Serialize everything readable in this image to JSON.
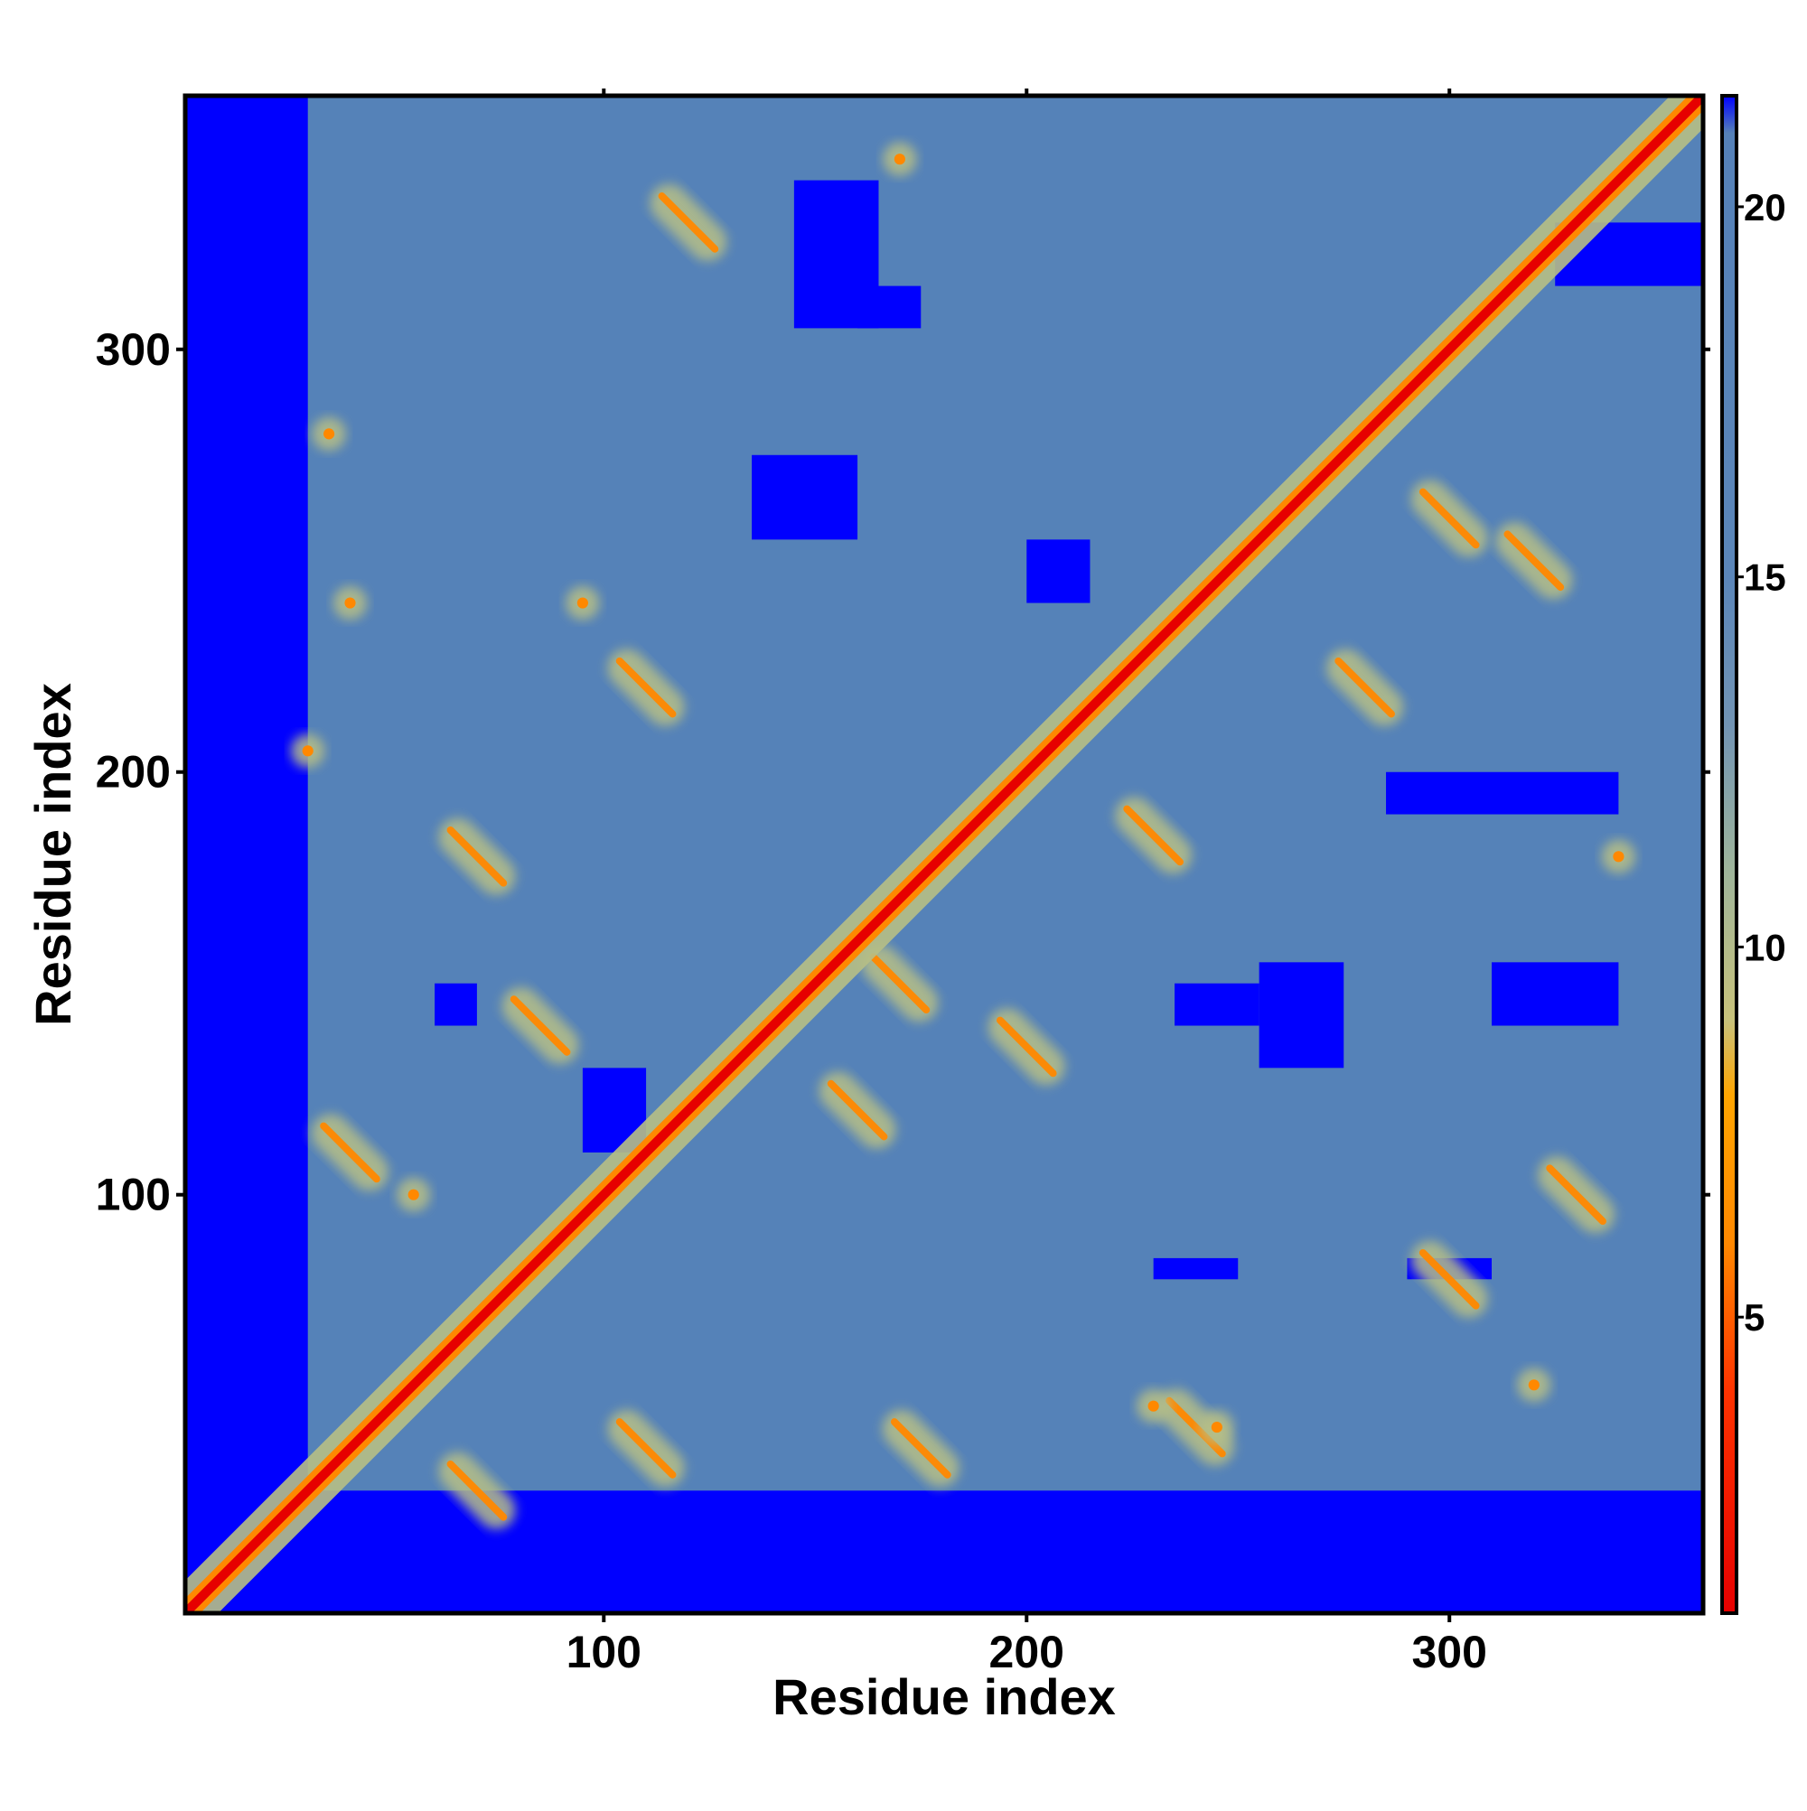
{
  "chart_data": {
    "type": "heatmap",
    "title": "",
    "xlabel": "Residue index",
    "ylabel": "Residue index",
    "xlim": [
      1,
      360
    ],
    "ylim": [
      1,
      360
    ],
    "x_ticks": [
      100,
      200,
      300
    ],
    "y_ticks": [
      100,
      200,
      300
    ],
    "colorbar": {
      "ticks": [
        5,
        10,
        15,
        20
      ],
      "range": [
        1,
        21.5
      ],
      "stops": [
        {
          "value": 1,
          "color": "#e60000"
        },
        {
          "value": 4,
          "color": "#ff3300"
        },
        {
          "value": 6,
          "color": "#ff8800"
        },
        {
          "value": 8,
          "color": "#ffa500"
        },
        {
          "value": 9,
          "color": "#c8c27a"
        },
        {
          "value": 11,
          "color": "#9fb59a"
        },
        {
          "value": 13,
          "color": "#7294b4"
        },
        {
          "value": 15,
          "color": "#5b86b9"
        },
        {
          "value": 21,
          "color": "#5581b8"
        },
        {
          "value": 21.5,
          "color": "#0000ff"
        }
      ]
    },
    "colors": {
      "far": "#0000ff",
      "background": "#5582b8",
      "contact": "#ff8800",
      "diagonal": "#e60000",
      "halo": "#b7bf86"
    },
    "contacts": [
      {
        "i": 70,
        "j": 30,
        "kind": "anti"
      },
      {
        "i": 110,
        "j": 40,
        "kind": "anti"
      },
      {
        "i": 175,
        "j": 40,
        "kind": "anti"
      },
      {
        "i": 240,
        "j": 45,
        "kind": "anti"
      },
      {
        "i": 300,
        "j": 80,
        "kind": "anti"
      },
      {
        "i": 330,
        "j": 100,
        "kind": "anti"
      },
      {
        "i": 160,
        "j": 120,
        "kind": "anti"
      },
      {
        "i": 200,
        "j": 135,
        "kind": "anti"
      },
      {
        "i": 230,
        "j": 185,
        "kind": "anti"
      },
      {
        "i": 280,
        "j": 220,
        "kind": "anti"
      },
      {
        "i": 300,
        "j": 260,
        "kind": "anti"
      },
      {
        "i": 320,
        "j": 250,
        "kind": "anti"
      },
      {
        "i": 110,
        "j": 220,
        "kind": "anti"
      },
      {
        "i": 120,
        "j": 330,
        "kind": "anti"
      },
      {
        "i": 40,
        "j": 110,
        "kind": "anti"
      },
      {
        "i": 70,
        "j": 180,
        "kind": "anti"
      },
      {
        "i": 85,
        "j": 140,
        "kind": "anti"
      },
      {
        "i": 170,
        "j": 150,
        "kind": "anti"
      },
      {
        "i": 35,
        "j": 280,
        "kind": "spot"
      },
      {
        "i": 95,
        "j": 240,
        "kind": "spot"
      },
      {
        "i": 170,
        "j": 345,
        "kind": "spot"
      },
      {
        "i": 245,
        "j": 45,
        "kind": "spot"
      },
      {
        "i": 340,
        "j": 180,
        "kind": "spot"
      },
      {
        "i": 30,
        "j": 205,
        "kind": "spot"
      },
      {
        "i": 55,
        "j": 100,
        "kind": "spot"
      },
      {
        "i": 320,
        "j": 55,
        "kind": "spot"
      },
      {
        "i": 40,
        "j": 240,
        "kind": "spot"
      },
      {
        "i": 230,
        "j": 50,
        "kind": "spot"
      }
    ],
    "far_regions": [
      {
        "x": [
          1,
          30
        ],
        "y": [
          1,
          360
        ]
      },
      {
        "x": [
          1,
          360
        ],
        "y": [
          1,
          30
        ]
      },
      {
        "x": [
          135,
          160
        ],
        "y": [
          255,
          275
        ]
      },
      {
        "x": [
          145,
          165
        ],
        "y": [
          305,
          340
        ]
      },
      {
        "x": [
          255,
          275
        ],
        "y": [
          130,
          155
        ]
      },
      {
        "x": [
          310,
          340
        ],
        "y": [
          140,
          155
        ]
      },
      {
        "x": [
          285,
          340
        ],
        "y": [
          190,
          200
        ]
      },
      {
        "x": [
          235,
          255
        ],
        "y": [
          140,
          150
        ]
      },
      {
        "x": [
          290,
          310
        ],
        "y": [
          80,
          85
        ]
      },
      {
        "x": [
          95,
          110
        ],
        "y": [
          110,
          130
        ]
      },
      {
        "x": [
          160,
          175
        ],
        "y": [
          305,
          315
        ]
      },
      {
        "x": [
          325,
          360
        ],
        "y": [
          315,
          330
        ]
      },
      {
        "x": [
          200,
          215
        ],
        "y": [
          240,
          255
        ]
      },
      {
        "x": [
          60,
          70
        ],
        "y": [
          140,
          150
        ]
      },
      {
        "x": [
          230,
          250
        ],
        "y": [
          80,
          85
        ]
      }
    ]
  }
}
